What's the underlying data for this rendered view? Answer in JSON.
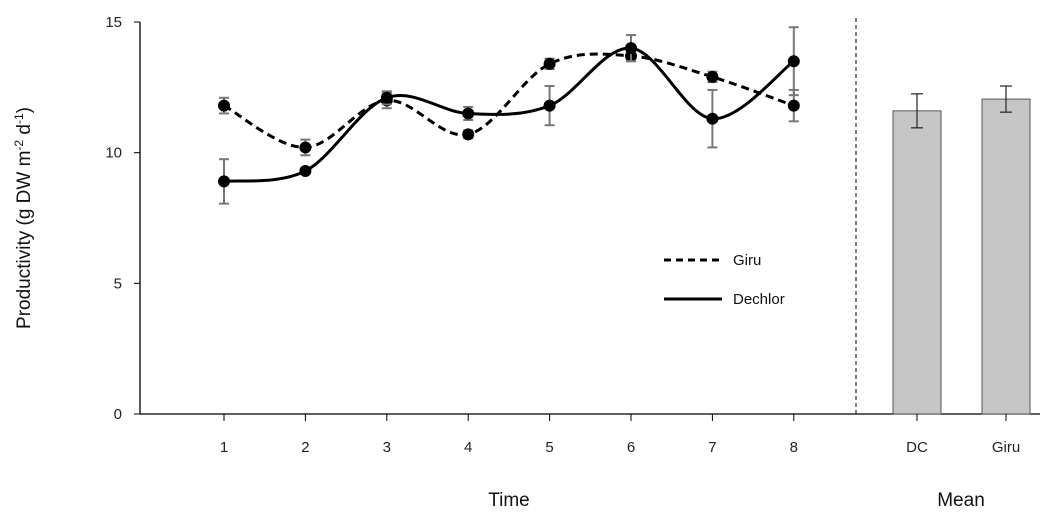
{
  "chart_data": {
    "type": "line",
    "title": "",
    "ylabel": {
      "main": "Productivity (g DW m",
      "sup1": "-2",
      "mid": " d",
      "sup2": "-1",
      "end": ")"
    },
    "ylim": [
      0,
      15
    ],
    "yticks": [
      0,
      5,
      10,
      15
    ],
    "time_panel": {
      "xlabel": "Time",
      "categories": [
        "1",
        "2",
        "3",
        "4",
        "5",
        "6",
        "7",
        "8"
      ],
      "series": [
        {
          "name": "Giru",
          "style": "dashed",
          "color": "#000000",
          "values": [
            11.8,
            10.2,
            12.0,
            10.7,
            13.4,
            13.7,
            12.9,
            11.8
          ],
          "errors": [
            0.3,
            0.3,
            0.3,
            0.15,
            0.2,
            0.2,
            0.2,
            0.6
          ]
        },
        {
          "name": "Dechlor",
          "style": "solid",
          "color": "#000000",
          "values": [
            8.9,
            9.3,
            12.1,
            11.5,
            11.8,
            14.0,
            11.3,
            13.5
          ],
          "errors": [
            0.85,
            0.1,
            0.25,
            0.25,
            0.75,
            0.5,
            1.1,
            1.3
          ]
        }
      ]
    },
    "mean_panel": {
      "xlabel": "Mean",
      "type": "bar",
      "categories": [
        "DC",
        "Giru"
      ],
      "values": [
        11.6,
        12.05
      ],
      "errors": [
        0.65,
        0.5
      ],
      "bar_color": "#c6c6c6"
    },
    "legend_position": "center-right of time panel",
    "grid": false
  }
}
